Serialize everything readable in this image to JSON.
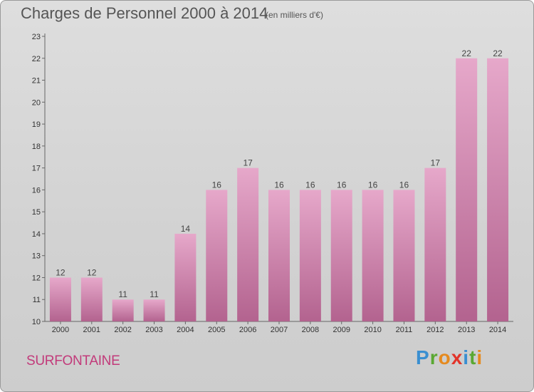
{
  "chart_data": {
    "type": "bar",
    "title": "Charges de Personnel 2000 à 2014",
    "subtitle": "(en milliers d'€)",
    "categories": [
      "2000",
      "2001",
      "2002",
      "2003",
      "2004",
      "2005",
      "2006",
      "2007",
      "2008",
      "2009",
      "2010",
      "2011",
      "2012",
      "2013",
      "2014"
    ],
    "values": [
      12,
      12,
      11,
      11,
      14,
      16,
      17,
      16,
      16,
      16,
      16,
      16,
      17,
      22,
      22
    ],
    "ylim": [
      10,
      23
    ],
    "yticks": [
      10,
      11,
      12,
      13,
      14,
      15,
      16,
      17,
      18,
      19,
      20,
      21,
      22,
      23
    ],
    "grid": false,
    "bar_color": "#e6a8ca",
    "bar_color_dark": "#b3638f"
  },
  "commune": "SURFONTAINE",
  "brand": {
    "letters": [
      "P",
      "r",
      "o",
      "x",
      "i",
      "t",
      "i"
    ],
    "colors": [
      "#3a8fd1",
      "#5aa832",
      "#e58a1f",
      "#e2342a",
      "#3a8fd1",
      "#5aa832",
      "#e58a1f"
    ]
  }
}
